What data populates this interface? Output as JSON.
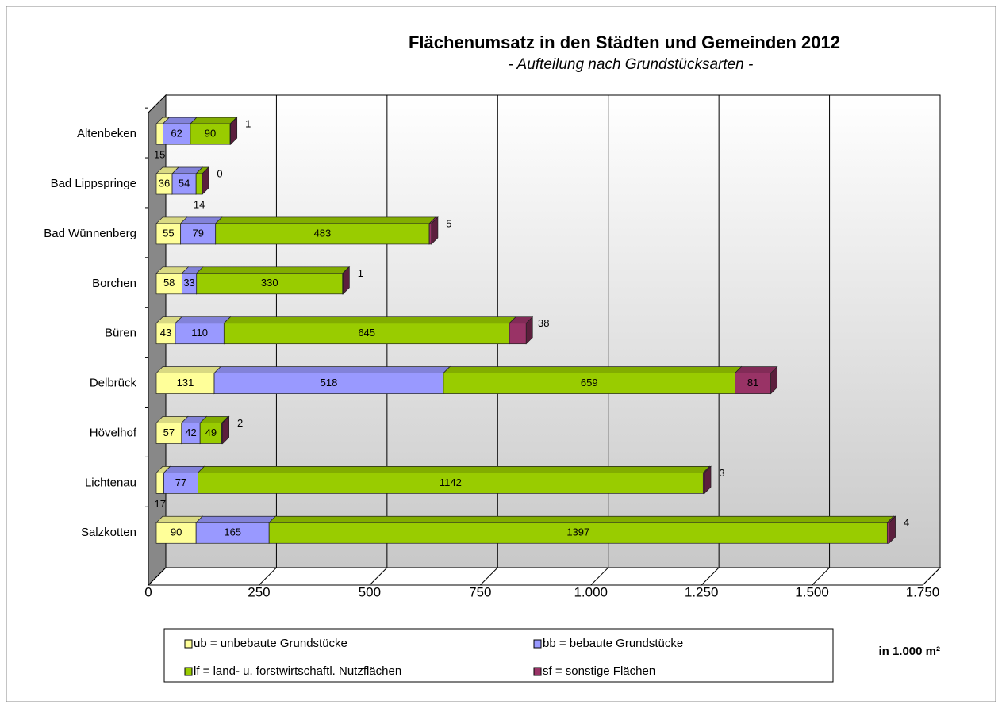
{
  "chart_data": {
    "type": "bar",
    "orientation": "horizontal",
    "stacked": true,
    "three_d": true,
    "title": "Flächenumsatz in den Städten und Gemeinden 2012",
    "subtitle": "- Aufteilung nach Grundstücksarten -",
    "x_label": "in 1.000 m²",
    "categories": [
      "Altenbeken",
      "Bad Lippspringe",
      "Bad Wünnenberg",
      "Borchen",
      "Büren",
      "Delbrück",
      "Hövelhof",
      "Lichtenau",
      "Salzkotten"
    ],
    "series": [
      {
        "name": "ub = unbebaute Grundstücke",
        "color": "#ffff99",
        "values": [
          15,
          36,
          55,
          58,
          43,
          131,
          57,
          17,
          90
        ]
      },
      {
        "name": "bb = bebaute Grundstücke",
        "color": "#9999ff",
        "values": [
          62,
          54,
          79,
          33,
          110,
          518,
          42,
          77,
          165
        ]
      },
      {
        "name": "lf = land- u. forstwirtschaftl. Nutzflächen",
        "color": "#99cc00",
        "values": [
          90,
          14,
          483,
          330,
          645,
          659,
          49,
          1142,
          1397
        ]
      },
      {
        "name": "sf = sonstige Flächen",
        "color": "#993366",
        "values": [
          1,
          0,
          5,
          1,
          38,
          81,
          2,
          3,
          4
        ]
      }
    ],
    "xlim": [
      0,
      1750
    ],
    "xticks": [
      0,
      250,
      500,
      750,
      {
        "value": 1000,
        "label": "1.000"
      },
      {
        "value": 1250,
        "label": "1.250"
      },
      {
        "value": 1500,
        "label": "1.500"
      },
      {
        "value": 1750,
        "label": "1.750"
      }
    ],
    "grid": true,
    "legend": "bottom"
  }
}
